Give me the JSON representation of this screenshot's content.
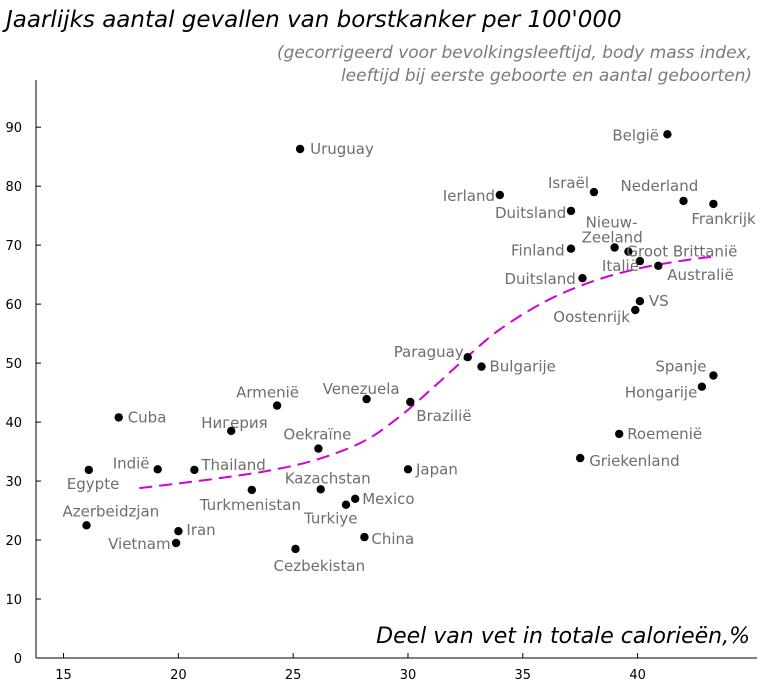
{
  "chart_data": {
    "type": "scatter",
    "title": "Jaarlijks aantal gevallen van borstkanker per 100'000",
    "subtitle_lines": [
      "(gecorrigeerd voor bevolkingsleeftijd, body mass index,",
      "leeftijd bij eerste geboorte en aantal geboorten)"
    ],
    "xlabel": "Deel van vet in totale calorieën,%",
    "ylabel": "",
    "xlim": [
      13.8,
      45.2
    ],
    "ylim": [
      0,
      98
    ],
    "x_ticks": [
      15,
      20,
      25,
      30,
      35,
      40
    ],
    "y_ticks": [
      0,
      10,
      20,
      30,
      40,
      50,
      60,
      70,
      80,
      90
    ],
    "grid": false,
    "colors": {
      "points": "#000000",
      "trend": "#d400d4",
      "labels": "#6e6e6e"
    },
    "points": [
      {
        "label": "België",
        "x": 41.3,
        "y": 88.8
      },
      {
        "label": "Uruguay",
        "x": 25.3,
        "y": 86.3
      },
      {
        "label": "Israël",
        "x": 38.1,
        "y": 79.0
      },
      {
        "label": "Ierland",
        "x": 34.0,
        "y": 78.5
      },
      {
        "label": "Nederland",
        "x": 42.0,
        "y": 77.5
      },
      {
        "label": "Frankrijk",
        "x": 43.3,
        "y": 77.0
      },
      {
        "label": "Duitsland",
        "x": 37.1,
        "y": 75.8
      },
      {
        "label": "Nieuw-\nZeeland",
        "x": 39.0,
        "y": 69.6
      },
      {
        "label": "Finland",
        "x": 37.1,
        "y": 69.4
      },
      {
        "label": "Groot Brittanië",
        "x": 39.6,
        "y": 68.9
      },
      {
        "label": "Italië",
        "x": 40.1,
        "y": 67.3
      },
      {
        "label": "Australië",
        "x": 40.9,
        "y": 66.5
      },
      {
        "label": "Duitsland",
        "x": 37.6,
        "y": 64.4
      },
      {
        "label": "VS",
        "x": 40.1,
        "y": 60.5
      },
      {
        "label": "Oostenrijk",
        "x": 39.9,
        "y": 59.0
      },
      {
        "label": "Paraguay",
        "x": 32.6,
        "y": 51.0
      },
      {
        "label": "Bulgarije",
        "x": 33.2,
        "y": 49.4
      },
      {
        "label": "Spanje",
        "x": 43.3,
        "y": 47.9
      },
      {
        "label": "Hongarije",
        "x": 42.8,
        "y": 46.0
      },
      {
        "label": "Venezuela",
        "x": 28.2,
        "y": 43.9
      },
      {
        "label": "Brazilië",
        "x": 30.1,
        "y": 43.4
      },
      {
        "label": "Armenië",
        "x": 24.3,
        "y": 42.8
      },
      {
        "label": "Cuba",
        "x": 17.4,
        "y": 40.8
      },
      {
        "label": "Нигерия",
        "x": 22.3,
        "y": 38.5
      },
      {
        "label": "Roemenië",
        "x": 39.2,
        "y": 38.0
      },
      {
        "label": "Oekraïne",
        "x": 26.1,
        "y": 35.5
      },
      {
        "label": "Griekenland",
        "x": 37.5,
        "y": 33.9
      },
      {
        "label": "Indië",
        "x": 19.1,
        "y": 32.0
      },
      {
        "label": "Egypte",
        "x": 16.1,
        "y": 31.9
      },
      {
        "label": "Thailand",
        "x": 20.7,
        "y": 31.9
      },
      {
        "label": "Japan",
        "x": 30.0,
        "y": 32.0
      },
      {
        "label": "Turkmenistan",
        "x": 23.2,
        "y": 28.5
      },
      {
        "label": "Kazachstan",
        "x": 26.2,
        "y": 28.6
      },
      {
        "label": "Mexico",
        "x": 27.7,
        "y": 27.0
      },
      {
        "label": "Turkiye",
        "x": 27.3,
        "y": 26.0
      },
      {
        "label": "Azerbeidzjan",
        "x": 16.0,
        "y": 22.5
      },
      {
        "label": "Iran",
        "x": 20.0,
        "y": 21.5
      },
      {
        "label": "China",
        "x": 28.1,
        "y": 20.5
      },
      {
        "label": "Vietnam",
        "x": 19.9,
        "y": 19.5
      },
      {
        "label": "Cezbekistan",
        "x": 25.1,
        "y": 18.5
      }
    ],
    "trend_line": {
      "style": "dashed",
      "x": [
        18.3,
        20,
        22,
        24,
        26,
        28,
        29.5,
        31,
        32.5,
        34,
        36,
        38,
        40,
        42,
        43.2
      ],
      "y": [
        28.8,
        29.6,
        30.6,
        31.8,
        33.6,
        36.6,
        40.5,
        45.5,
        50.8,
        55.7,
        60.5,
        63.8,
        66.0,
        67.4,
        68.0
      ]
    }
  }
}
